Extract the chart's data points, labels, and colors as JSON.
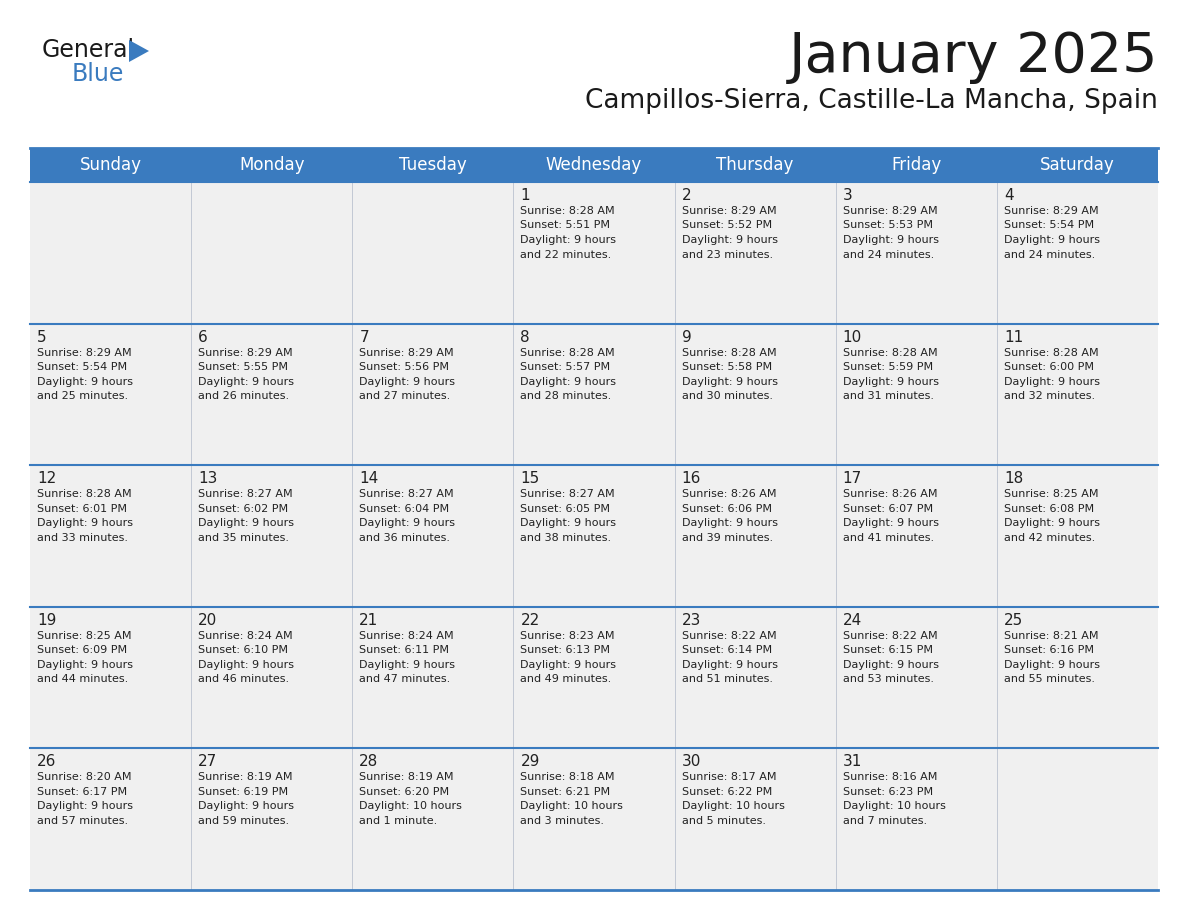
{
  "title": "January 2025",
  "subtitle": "Campillos-Sierra, Castille-La Mancha, Spain",
  "days_of_week": [
    "Sunday",
    "Monday",
    "Tuesday",
    "Wednesday",
    "Thursday",
    "Friday",
    "Saturday"
  ],
  "header_bg": "#3a7bbf",
  "header_text": "#ffffff",
  "cell_bg_light": "#f0f0f0",
  "border_color": "#3a7bbf",
  "day_num_color": "#222222",
  "cell_text_color": "#222222",
  "title_color": "#1a1a1a",
  "subtitle_color": "#1a1a1a",
  "logo_general_color": "#1a1a1a",
  "logo_blue_color": "#3a7bbf",
  "logo_triangle_color": "#3a7bbf",
  "calendar_data": [
    [
      {
        "day": 0,
        "sunrise": "",
        "sunset": "",
        "daylight": ""
      },
      {
        "day": 0,
        "sunrise": "",
        "sunset": "",
        "daylight": ""
      },
      {
        "day": 0,
        "sunrise": "",
        "sunset": "",
        "daylight": ""
      },
      {
        "day": 1,
        "sunrise": "8:28 AM",
        "sunset": "5:51 PM",
        "daylight": "9 hours\nand 22 minutes."
      },
      {
        "day": 2,
        "sunrise": "8:29 AM",
        "sunset": "5:52 PM",
        "daylight": "9 hours\nand 23 minutes."
      },
      {
        "day": 3,
        "sunrise": "8:29 AM",
        "sunset": "5:53 PM",
        "daylight": "9 hours\nand 24 minutes."
      },
      {
        "day": 4,
        "sunrise": "8:29 AM",
        "sunset": "5:54 PM",
        "daylight": "9 hours\nand 24 minutes."
      }
    ],
    [
      {
        "day": 5,
        "sunrise": "8:29 AM",
        "sunset": "5:54 PM",
        "daylight": "9 hours\nand 25 minutes."
      },
      {
        "day": 6,
        "sunrise": "8:29 AM",
        "sunset": "5:55 PM",
        "daylight": "9 hours\nand 26 minutes."
      },
      {
        "day": 7,
        "sunrise": "8:29 AM",
        "sunset": "5:56 PM",
        "daylight": "9 hours\nand 27 minutes."
      },
      {
        "day": 8,
        "sunrise": "8:28 AM",
        "sunset": "5:57 PM",
        "daylight": "9 hours\nand 28 minutes."
      },
      {
        "day": 9,
        "sunrise": "8:28 AM",
        "sunset": "5:58 PM",
        "daylight": "9 hours\nand 30 minutes."
      },
      {
        "day": 10,
        "sunrise": "8:28 AM",
        "sunset": "5:59 PM",
        "daylight": "9 hours\nand 31 minutes."
      },
      {
        "day": 11,
        "sunrise": "8:28 AM",
        "sunset": "6:00 PM",
        "daylight": "9 hours\nand 32 minutes."
      }
    ],
    [
      {
        "day": 12,
        "sunrise": "8:28 AM",
        "sunset": "6:01 PM",
        "daylight": "9 hours\nand 33 minutes."
      },
      {
        "day": 13,
        "sunrise": "8:27 AM",
        "sunset": "6:02 PM",
        "daylight": "9 hours\nand 35 minutes."
      },
      {
        "day": 14,
        "sunrise": "8:27 AM",
        "sunset": "6:04 PM",
        "daylight": "9 hours\nand 36 minutes."
      },
      {
        "day": 15,
        "sunrise": "8:27 AM",
        "sunset": "6:05 PM",
        "daylight": "9 hours\nand 38 minutes."
      },
      {
        "day": 16,
        "sunrise": "8:26 AM",
        "sunset": "6:06 PM",
        "daylight": "9 hours\nand 39 minutes."
      },
      {
        "day": 17,
        "sunrise": "8:26 AM",
        "sunset": "6:07 PM",
        "daylight": "9 hours\nand 41 minutes."
      },
      {
        "day": 18,
        "sunrise": "8:25 AM",
        "sunset": "6:08 PM",
        "daylight": "9 hours\nand 42 minutes."
      }
    ],
    [
      {
        "day": 19,
        "sunrise": "8:25 AM",
        "sunset": "6:09 PM",
        "daylight": "9 hours\nand 44 minutes."
      },
      {
        "day": 20,
        "sunrise": "8:24 AM",
        "sunset": "6:10 PM",
        "daylight": "9 hours\nand 46 minutes."
      },
      {
        "day": 21,
        "sunrise": "8:24 AM",
        "sunset": "6:11 PM",
        "daylight": "9 hours\nand 47 minutes."
      },
      {
        "day": 22,
        "sunrise": "8:23 AM",
        "sunset": "6:13 PM",
        "daylight": "9 hours\nand 49 minutes."
      },
      {
        "day": 23,
        "sunrise": "8:22 AM",
        "sunset": "6:14 PM",
        "daylight": "9 hours\nand 51 minutes."
      },
      {
        "day": 24,
        "sunrise": "8:22 AM",
        "sunset": "6:15 PM",
        "daylight": "9 hours\nand 53 minutes."
      },
      {
        "day": 25,
        "sunrise": "8:21 AM",
        "sunset": "6:16 PM",
        "daylight": "9 hours\nand 55 minutes."
      }
    ],
    [
      {
        "day": 26,
        "sunrise": "8:20 AM",
        "sunset": "6:17 PM",
        "daylight": "9 hours\nand 57 minutes."
      },
      {
        "day": 27,
        "sunrise": "8:19 AM",
        "sunset": "6:19 PM",
        "daylight": "9 hours\nand 59 minutes."
      },
      {
        "day": 28,
        "sunrise": "8:19 AM",
        "sunset": "6:20 PM",
        "daylight": "10 hours\nand 1 minute."
      },
      {
        "day": 29,
        "sunrise": "8:18 AM",
        "sunset": "6:21 PM",
        "daylight": "10 hours\nand 3 minutes."
      },
      {
        "day": 30,
        "sunrise": "8:17 AM",
        "sunset": "6:22 PM",
        "daylight": "10 hours\nand 5 minutes."
      },
      {
        "day": 31,
        "sunrise": "8:16 AM",
        "sunset": "6:23 PM",
        "daylight": "10 hours\nand 7 minutes."
      },
      {
        "day": 0,
        "sunrise": "",
        "sunset": "",
        "daylight": ""
      }
    ]
  ]
}
